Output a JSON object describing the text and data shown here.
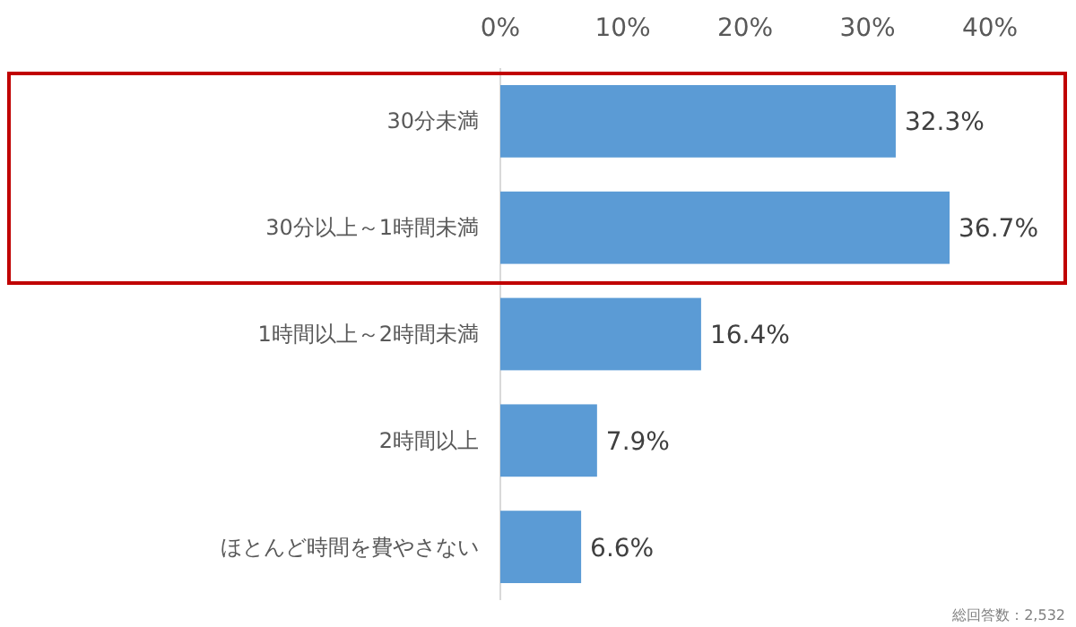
{
  "chart_data": {
    "type": "bar",
    "orientation": "horizontal",
    "categories": [
      "30分未満",
      "30分以上～1時間未満",
      "1時間以上～2時間未満",
      "2時間以上",
      "ほとんど時間を費やさない"
    ],
    "values": [
      32.3,
      36.7,
      16.4,
      7.9,
      6.6
    ],
    "value_labels": [
      "32.3%",
      "36.7%",
      "16.4%",
      "7.9%",
      "6.6%"
    ],
    "color": "#5b9bd5",
    "xlim": [
      0,
      46
    ],
    "xticks": [
      {
        "value": 0,
        "label": "0%"
      },
      {
        "value": 10,
        "label": "10%"
      },
      {
        "value": 20,
        "label": "20%"
      },
      {
        "value": 30,
        "label": "30%"
      },
      {
        "value": 40,
        "label": "40%"
      }
    ],
    "grid": false,
    "annotations": [
      "総回答数：2,532"
    ]
  }
}
